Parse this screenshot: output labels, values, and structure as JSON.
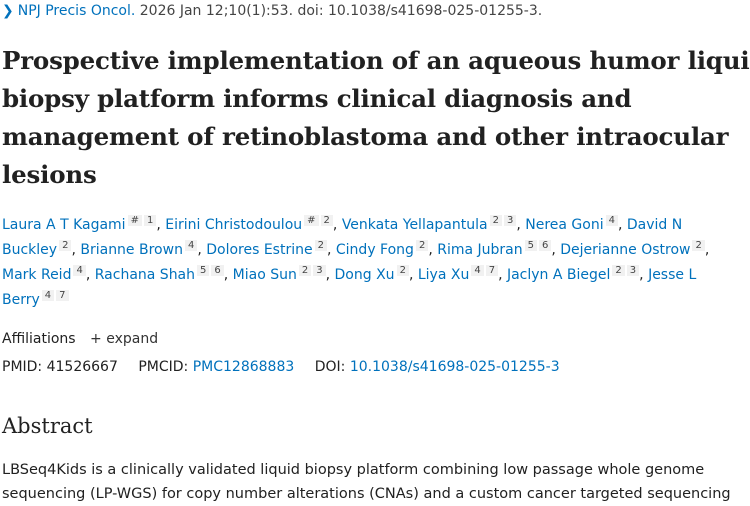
{
  "citation": {
    "journal": "NPJ Precis Oncol.",
    "details": "2026 Jan 12;10(1):53. doi: 10.1038/s41698-025-01255-3."
  },
  "title": "Prospective implementation of an aqueous humor liquid biopsy platform informs clinical diagnosis and management of retinoblastoma and other intraocular lesions",
  "authors": [
    {
      "name": "Laura A T Kagami",
      "sups": [
        "#",
        "1"
      ]
    },
    {
      "name": "Eirini Christodoulou",
      "sups": [
        "#",
        "2"
      ]
    },
    {
      "name": "Venkata Yellapantula",
      "sups": [
        "2",
        "3"
      ]
    },
    {
      "name": "Nerea Goni",
      "sups": [
        "4"
      ]
    },
    {
      "name": "David N Buckley",
      "sups": [
        "2"
      ]
    },
    {
      "name": "Brianne Brown",
      "sups": [
        "4"
      ]
    },
    {
      "name": "Dolores Estrine",
      "sups": [
        "2"
      ]
    },
    {
      "name": "Cindy Fong",
      "sups": [
        "2"
      ]
    },
    {
      "name": "Rima Jubran",
      "sups": [
        "5",
        "6"
      ]
    },
    {
      "name": "Dejerianne Ostrow",
      "sups": [
        "2"
      ]
    },
    {
      "name": "Mark Reid",
      "sups": [
        "4"
      ]
    },
    {
      "name": "Rachana Shah",
      "sups": [
        "5",
        "6"
      ]
    },
    {
      "name": "Miao Sun",
      "sups": [
        "2",
        "3"
      ]
    },
    {
      "name": "Dong Xu",
      "sups": [
        "2"
      ]
    },
    {
      "name": "Liya Xu",
      "sups": [
        "4",
        "7"
      ]
    },
    {
      "name": "Jaclyn A Biegel",
      "sups": [
        "2",
        "3"
      ]
    },
    {
      "name": "Jesse L Berry",
      "sups": [
        "4",
        "7"
      ]
    }
  ],
  "affiliations": {
    "label": "Affiliations",
    "expand": "expand"
  },
  "ids": {
    "pmid_label": "PMID:",
    "pmid": "41526667",
    "pmcid_label": "PMCID:",
    "pmcid": "PMC12868883",
    "doi_label": "DOI:",
    "doi": "10.1038/s41698-025-01255-3"
  },
  "abstract": {
    "heading": "Abstract",
    "text": "LBSeq4Kids is a clinically validated liquid biopsy platform combining low passage whole genome sequencing (LP-WGS) for copy number alterations (CNAs) and a custom cancer targeted sequencing"
  },
  "colors": {
    "link": "#0071bc",
    "text": "#212121"
  }
}
